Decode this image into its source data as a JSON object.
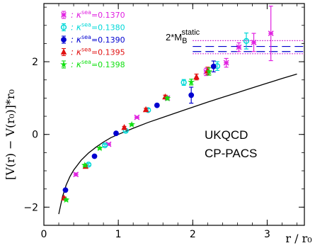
{
  "chart_data": {
    "type": "scatter",
    "title": "",
    "xlabel": "r / r₀",
    "ylabel": "[V(r) − V(r₀)]*r₀",
    "xlim": [
      0,
      3.5
    ],
    "ylim": [
      -2.5,
      3.6
    ],
    "x_ticks": [
      0,
      1,
      2,
      3
    ],
    "y_ticks": [
      -2,
      0,
      2
    ],
    "x_tick_labels": [
      "0",
      "1",
      "2",
      "3"
    ],
    "y_tick_labels": [
      "−2",
      "0",
      "2"
    ],
    "grid": false,
    "legend_position": "top-left",
    "annotations": {
      "static_label": "2*M",
      "static_sub": "B",
      "static_sup": "static",
      "collab_1": "UKQCD",
      "collab_2": "CP-PACS"
    },
    "fit_curve": {
      "label": "fit",
      "color": "#000000",
      "x": [
        0.2,
        0.25,
        0.3,
        0.35,
        0.4,
        0.5,
        0.6,
        0.7,
        0.8,
        0.9,
        1.0,
        1.2,
        1.4,
        1.6,
        1.8,
        2.0,
        2.2,
        2.4,
        2.6,
        2.8,
        3.0,
        3.2,
        3.4
      ],
      "y": [
        -2.19,
        -1.71,
        -1.39,
        -1.16,
        -0.98,
        -0.71,
        -0.51,
        -0.35,
        -0.21,
        -0.09,
        0.0,
        0.17,
        0.33,
        0.47,
        0.61,
        0.75,
        0.89,
        1.02,
        1.15,
        1.28,
        1.41,
        1.54,
        1.66
      ]
    },
    "static_lines": {
      "color": "#0000cc",
      "dotted_color": "#cc00cc",
      "x_range": [
        2.0,
        3.5
      ],
      "dashed_y": [
        2.42,
        2.28
      ],
      "dotted_y": [
        2.58,
        2.22
      ]
    },
    "series": [
      {
        "name": "κˢᵉᵃ=0.1370",
        "legend_label": "κ",
        "legend_sup": "sea",
        "legend_value": "=0.1370",
        "color": "#e020e0",
        "marker": "x",
        "points": [
          [
            0.43,
            -1.1
          ],
          [
            0.87,
            -0.27
          ],
          [
            1.25,
            0.47
          ],
          [
            1.66,
            1.0
          ],
          [
            2.18,
            1.72
          ],
          [
            2.45,
            1.97
          ],
          [
            2.62,
            2.4
          ],
          [
            2.82,
            2.53
          ],
          [
            3.05,
            2.78
          ]
        ],
        "err": [
          0.04,
          0.03,
          0.03,
          0.05,
          0.1,
          0.12,
          0.12,
          0.25,
          0.75
        ]
      },
      {
        "name": "κˢᵉᵃ=0.1380",
        "legend_label": "κ",
        "legend_sup": "sea",
        "legend_value": "=0.1380",
        "color": "#00d8d8",
        "marker": "o",
        "points": [
          [
            0.6,
            -0.83
          ],
          [
            0.82,
            -0.3
          ],
          [
            1.1,
            0.1
          ],
          [
            1.4,
            0.67
          ],
          [
            1.88,
            1.43
          ],
          [
            2.33,
            1.88
          ],
          [
            2.72,
            2.57
          ]
        ],
        "err": [
          0.03,
          0.03,
          0.03,
          0.04,
          0.08,
          0.12,
          0.22
        ]
      },
      {
        "name": "κˢᵉᵃ=0.1390",
        "legend_label": "κ",
        "legend_sup": "sea",
        "legend_value": "=0.1390",
        "color": "#0000d0",
        "marker": "filled-circle",
        "points": [
          [
            0.29,
            -1.53
          ],
          [
            0.68,
            -0.6
          ],
          [
            0.97,
            0.03
          ],
          [
            1.52,
            0.8
          ],
          [
            1.98,
            1.08
          ],
          [
            2.28,
            1.87
          ]
        ],
        "err": [
          0.03,
          0.03,
          0.03,
          0.04,
          0.22,
          0.15
        ]
      },
      {
        "name": "κˢᵉᵃ=0.1395",
        "legend_label": "κ",
        "legend_sup": "sea",
        "legend_value": "=0.1395",
        "color": "#e01010",
        "marker": "triangle",
        "points": [
          [
            0.27,
            -1.75
          ],
          [
            0.56,
            -0.88
          ],
          [
            1.08,
            0.19
          ],
          [
            1.37,
            0.68
          ],
          [
            1.63,
            1.03
          ],
          [
            2.05,
            1.58
          ],
          [
            2.2,
            1.75
          ]
        ],
        "err": [
          0.03,
          0.03,
          0.03,
          0.04,
          0.05,
          0.08,
          0.1
        ]
      },
      {
        "name": "κˢᵉᵃ=0.1398",
        "legend_label": "κ",
        "legend_sup": "sea",
        "legend_value": "=0.1398",
        "color": "#10e010",
        "marker": "star",
        "points": [
          [
            0.3,
            -1.8
          ],
          [
            0.55,
            -0.85
          ],
          [
            0.75,
            -0.38
          ],
          [
            1.18,
            0.27
          ],
          [
            1.66,
            0.99
          ],
          [
            1.98,
            1.44
          ],
          [
            2.22,
            1.73
          ]
        ],
        "err": [
          0.03,
          0.03,
          0.03,
          0.03,
          0.04,
          0.08,
          0.1
        ]
      }
    ]
  }
}
